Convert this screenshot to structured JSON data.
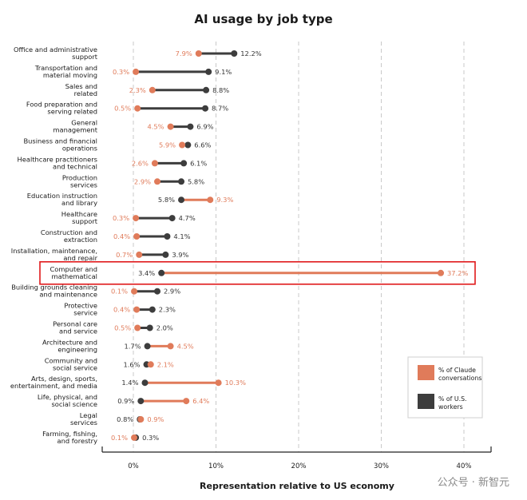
{
  "chart_data": {
    "type": "dumbbell",
    "title": "AI usage by job type",
    "xlabel": "Representation relative to US economy",
    "xlim": [
      -4,
      42
    ],
    "ticks": [
      0,
      10,
      20,
      30,
      40
    ],
    "tick_labels": [
      "0%",
      "10%",
      "20%",
      "30%",
      "40%"
    ],
    "series": [
      {
        "name": "% of Claude conversations",
        "color": "#e07b5a"
      },
      {
        "name": "% of U.S. workers",
        "color": "#3d3d3d"
      }
    ],
    "legend": {
      "claude_line1": "% of Claude",
      "claude_line2": "conversations",
      "us_line1": "% of U.S.",
      "us_line2": "workers",
      "position": "bottom-right"
    },
    "highlight_category": "Computer and mathematical",
    "categories": [
      {
        "line1": "Office and administrative",
        "line2": "support",
        "claude": 7.9,
        "us": 12.2,
        "claude_label": "7.9%",
        "us_label": "12.2%"
      },
      {
        "line1": "Transportation and",
        "line2": "material moving",
        "claude": 0.3,
        "us": 9.1,
        "claude_label": "0.3%",
        "us_label": "9.1%"
      },
      {
        "line1": "Sales and",
        "line2": "related",
        "claude": 2.3,
        "us": 8.8,
        "claude_label": "2.3%",
        "us_label": "8.8%"
      },
      {
        "line1": "Food preparation and",
        "line2": "serving related",
        "claude": 0.5,
        "us": 8.7,
        "claude_label": "0.5%",
        "us_label": "8.7%"
      },
      {
        "line1": "General",
        "line2": "management",
        "claude": 4.5,
        "us": 6.9,
        "claude_label": "4.5%",
        "us_label": "6.9%"
      },
      {
        "line1": "Business and financial",
        "line2": "operations",
        "claude": 5.9,
        "us": 6.6,
        "claude_label": "5.9%",
        "us_label": "6.6%"
      },
      {
        "line1": "Healthcare practitioners",
        "line2": "and technical",
        "claude": 2.6,
        "us": 6.1,
        "claude_label": "2.6%",
        "us_label": "6.1%"
      },
      {
        "line1": "Production",
        "line2": "services",
        "claude": 2.9,
        "us": 5.8,
        "claude_label": "2.9%",
        "us_label": "5.8%"
      },
      {
        "line1": "Education instruction",
        "line2": "and library",
        "claude": 9.3,
        "us": 5.8,
        "claude_label": "9.3%",
        "us_label": "5.8%"
      },
      {
        "line1": "Healthcare",
        "line2": "support",
        "claude": 0.3,
        "us": 4.7,
        "claude_label": "0.3%",
        "us_label": "4.7%"
      },
      {
        "line1": "Construction and",
        "line2": "extraction",
        "claude": 0.4,
        "us": 4.1,
        "claude_label": "0.4%",
        "us_label": "4.1%"
      },
      {
        "line1": "Installation, maintenance,",
        "line2": "and repair",
        "claude": 0.7,
        "us": 3.9,
        "claude_label": "0.7%",
        "us_label": "3.9%"
      },
      {
        "line1": "Computer and",
        "line2": "mathematical",
        "claude": 37.2,
        "us": 3.4,
        "claude_label": "37.2%",
        "us_label": "3.4%"
      },
      {
        "line1": "Building grounds cleaning",
        "line2": "and maintenance",
        "claude": 0.1,
        "us": 2.9,
        "claude_label": "0.1%",
        "us_label": "2.9%"
      },
      {
        "line1": "Protective",
        "line2": "service",
        "claude": 0.4,
        "us": 2.3,
        "claude_label": "0.4%",
        "us_label": "2.3%"
      },
      {
        "line1": "Personal care",
        "line2": "and service",
        "claude": 0.5,
        "us": 2.0,
        "claude_label": "0.5%",
        "us_label": "2.0%"
      },
      {
        "line1": "Architecture and",
        "line2": "engineering",
        "claude": 4.5,
        "us": 1.7,
        "claude_label": "4.5%",
        "us_label": "1.7%"
      },
      {
        "line1": "Community and",
        "line2": "social service",
        "claude": 2.1,
        "us": 1.6,
        "claude_label": "2.1%",
        "us_label": "1.6%"
      },
      {
        "line1": "Arts, design, sports,",
        "line2": "entertainment, and media",
        "claude": 10.3,
        "us": 1.4,
        "claude_label": "10.3%",
        "us_label": "1.4%"
      },
      {
        "line1": "Life, physical, and",
        "line2": "social science",
        "claude": 6.4,
        "us": 0.9,
        "claude_label": "6.4%",
        "us_label": "0.9%"
      },
      {
        "line1": "Legal",
        "line2": "services",
        "claude": 0.9,
        "us": 0.8,
        "claude_label": "0.9%",
        "us_label": "0.8%"
      },
      {
        "line1": "Farming, fishing,",
        "line2": "and forestry",
        "claude": 0.1,
        "us": 0.3,
        "claude_label": "0.1%",
        "us_label": "0.3%"
      }
    ]
  },
  "watermark": "公众号 · 新智元"
}
